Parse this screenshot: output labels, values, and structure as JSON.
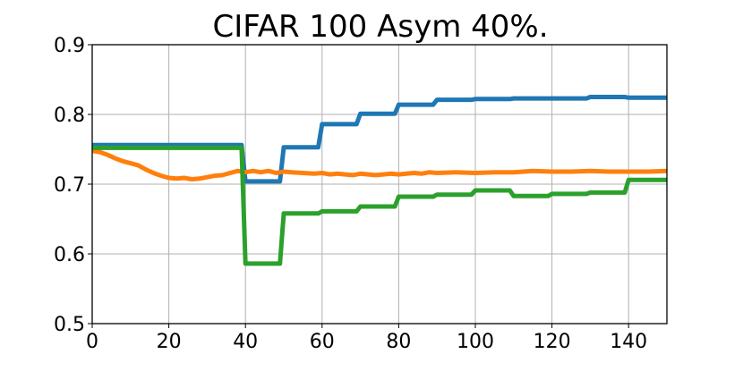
{
  "chart_data": {
    "type": "line",
    "title": "CIFAR 100 Asym 40%.",
    "xlabel": "",
    "ylabel": "",
    "xlim": [
      0,
      150
    ],
    "ylim": [
      0.5,
      0.9
    ],
    "xticks": [
      0,
      20,
      40,
      60,
      80,
      100,
      120,
      140
    ],
    "xtick_labels": [
      "0",
      "20",
      "40",
      "60",
      "80",
      "100",
      "120",
      "140"
    ],
    "yticks": [
      0.5,
      0.6,
      0.7,
      0.8,
      0.9
    ],
    "ytick_labels": [
      "0.5",
      "0.6",
      "0.7",
      "0.8",
      "0.9"
    ],
    "grid": true,
    "legend": "none",
    "series": [
      {
        "color": "#1f77b4",
        "points": [
          [
            0,
            0.756
          ],
          [
            39,
            0.756
          ],
          [
            40,
            0.704
          ],
          [
            49,
            0.704
          ],
          [
            50,
            0.753
          ],
          [
            59,
            0.753
          ],
          [
            60,
            0.786
          ],
          [
            69,
            0.786
          ],
          [
            70,
            0.801
          ],
          [
            79,
            0.801
          ],
          [
            80,
            0.814
          ],
          [
            89,
            0.814
          ],
          [
            90,
            0.821
          ],
          [
            99,
            0.821
          ],
          [
            100,
            0.822
          ],
          [
            109,
            0.822
          ],
          [
            110,
            0.823
          ],
          [
            129,
            0.823
          ],
          [
            130,
            0.825
          ],
          [
            139,
            0.825
          ],
          [
            140,
            0.824
          ],
          [
            150,
            0.824
          ]
        ]
      },
      {
        "color": "#ff7f0e",
        "points": [
          [
            0,
            0.748
          ],
          [
            2,
            0.746
          ],
          [
            4,
            0.742
          ],
          [
            6,
            0.737
          ],
          [
            8,
            0.733
          ],
          [
            10,
            0.73
          ],
          [
            12,
            0.727
          ],
          [
            14,
            0.721
          ],
          [
            16,
            0.716
          ],
          [
            18,
            0.712
          ],
          [
            20,
            0.709
          ],
          [
            22,
            0.708
          ],
          [
            24,
            0.709
          ],
          [
            26,
            0.707
          ],
          [
            28,
            0.708
          ],
          [
            30,
            0.71
          ],
          [
            32,
            0.712
          ],
          [
            34,
            0.713
          ],
          [
            36,
            0.716
          ],
          [
            38,
            0.719
          ],
          [
            40,
            0.717
          ],
          [
            42,
            0.719
          ],
          [
            44,
            0.717
          ],
          [
            46,
            0.719
          ],
          [
            48,
            0.716
          ],
          [
            50,
            0.718
          ],
          [
            52,
            0.717
          ],
          [
            55,
            0.716
          ],
          [
            58,
            0.715
          ],
          [
            60,
            0.716
          ],
          [
            62,
            0.714
          ],
          [
            64,
            0.715
          ],
          [
            66,
            0.714
          ],
          [
            68,
            0.713
          ],
          [
            70,
            0.715
          ],
          [
            72,
            0.714
          ],
          [
            74,
            0.713
          ],
          [
            76,
            0.714
          ],
          [
            78,
            0.715
          ],
          [
            80,
            0.714
          ],
          [
            82,
            0.715
          ],
          [
            84,
            0.716
          ],
          [
            86,
            0.715
          ],
          [
            88,
            0.717
          ],
          [
            90,
            0.716
          ],
          [
            95,
            0.717
          ],
          [
            100,
            0.716
          ],
          [
            105,
            0.717
          ],
          [
            110,
            0.717
          ],
          [
            115,
            0.719
          ],
          [
            120,
            0.718
          ],
          [
            125,
            0.718
          ],
          [
            130,
            0.719
          ],
          [
            135,
            0.718
          ],
          [
            140,
            0.718
          ],
          [
            145,
            0.718
          ],
          [
            150,
            0.719
          ]
        ]
      },
      {
        "color": "#2ca02c",
        "points": [
          [
            0,
            0.752
          ],
          [
            39,
            0.752
          ],
          [
            40,
            0.586
          ],
          [
            49,
            0.586
          ],
          [
            50,
            0.658
          ],
          [
            59,
            0.658
          ],
          [
            60,
            0.661
          ],
          [
            69,
            0.661
          ],
          [
            70,
            0.668
          ],
          [
            79,
            0.668
          ],
          [
            80,
            0.682
          ],
          [
            89,
            0.682
          ],
          [
            90,
            0.685
          ],
          [
            99,
            0.685
          ],
          [
            100,
            0.691
          ],
          [
            109,
            0.691
          ],
          [
            110,
            0.683
          ],
          [
            119,
            0.683
          ],
          [
            120,
            0.686
          ],
          [
            129,
            0.686
          ],
          [
            130,
            0.688
          ],
          [
            139,
            0.688
          ],
          [
            140,
            0.706
          ],
          [
            150,
            0.706
          ]
        ]
      }
    ]
  }
}
